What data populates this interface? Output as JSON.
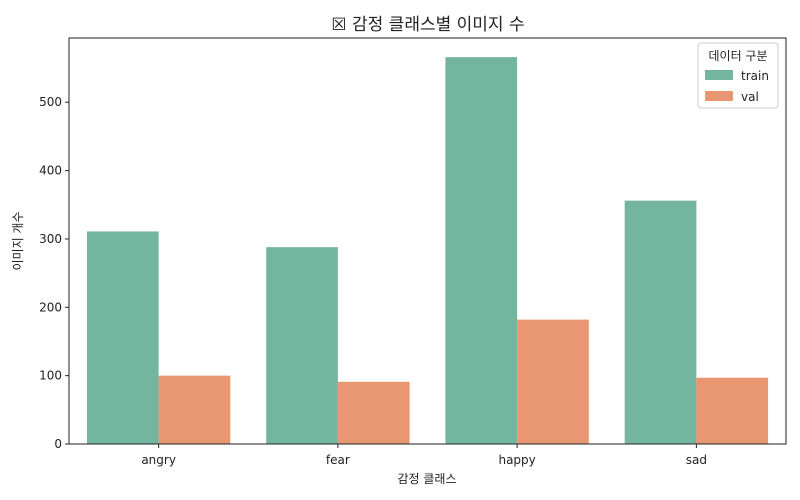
{
  "chart_data": {
    "type": "bar",
    "title": "☒ 감정 클래스별 이미지 수",
    "xlabel": "감정 클래스",
    "ylabel": "이미지 개수",
    "categories": [
      "angry",
      "fear",
      "happy",
      "sad"
    ],
    "series": [
      {
        "name": "train",
        "values": [
          311,
          288,
          566,
          356
        ],
        "color": "#74b5a0"
      },
      {
        "name": "val",
        "values": [
          100,
          91,
          182,
          97
        ],
        "color": "#e89772"
      }
    ],
    "ylim": [
      0,
      594
    ],
    "yticks": [
      0,
      100,
      200,
      300,
      400,
      500
    ],
    "grid": false,
    "legend": {
      "title": "데이터 구분",
      "placement": "top-right"
    }
  }
}
